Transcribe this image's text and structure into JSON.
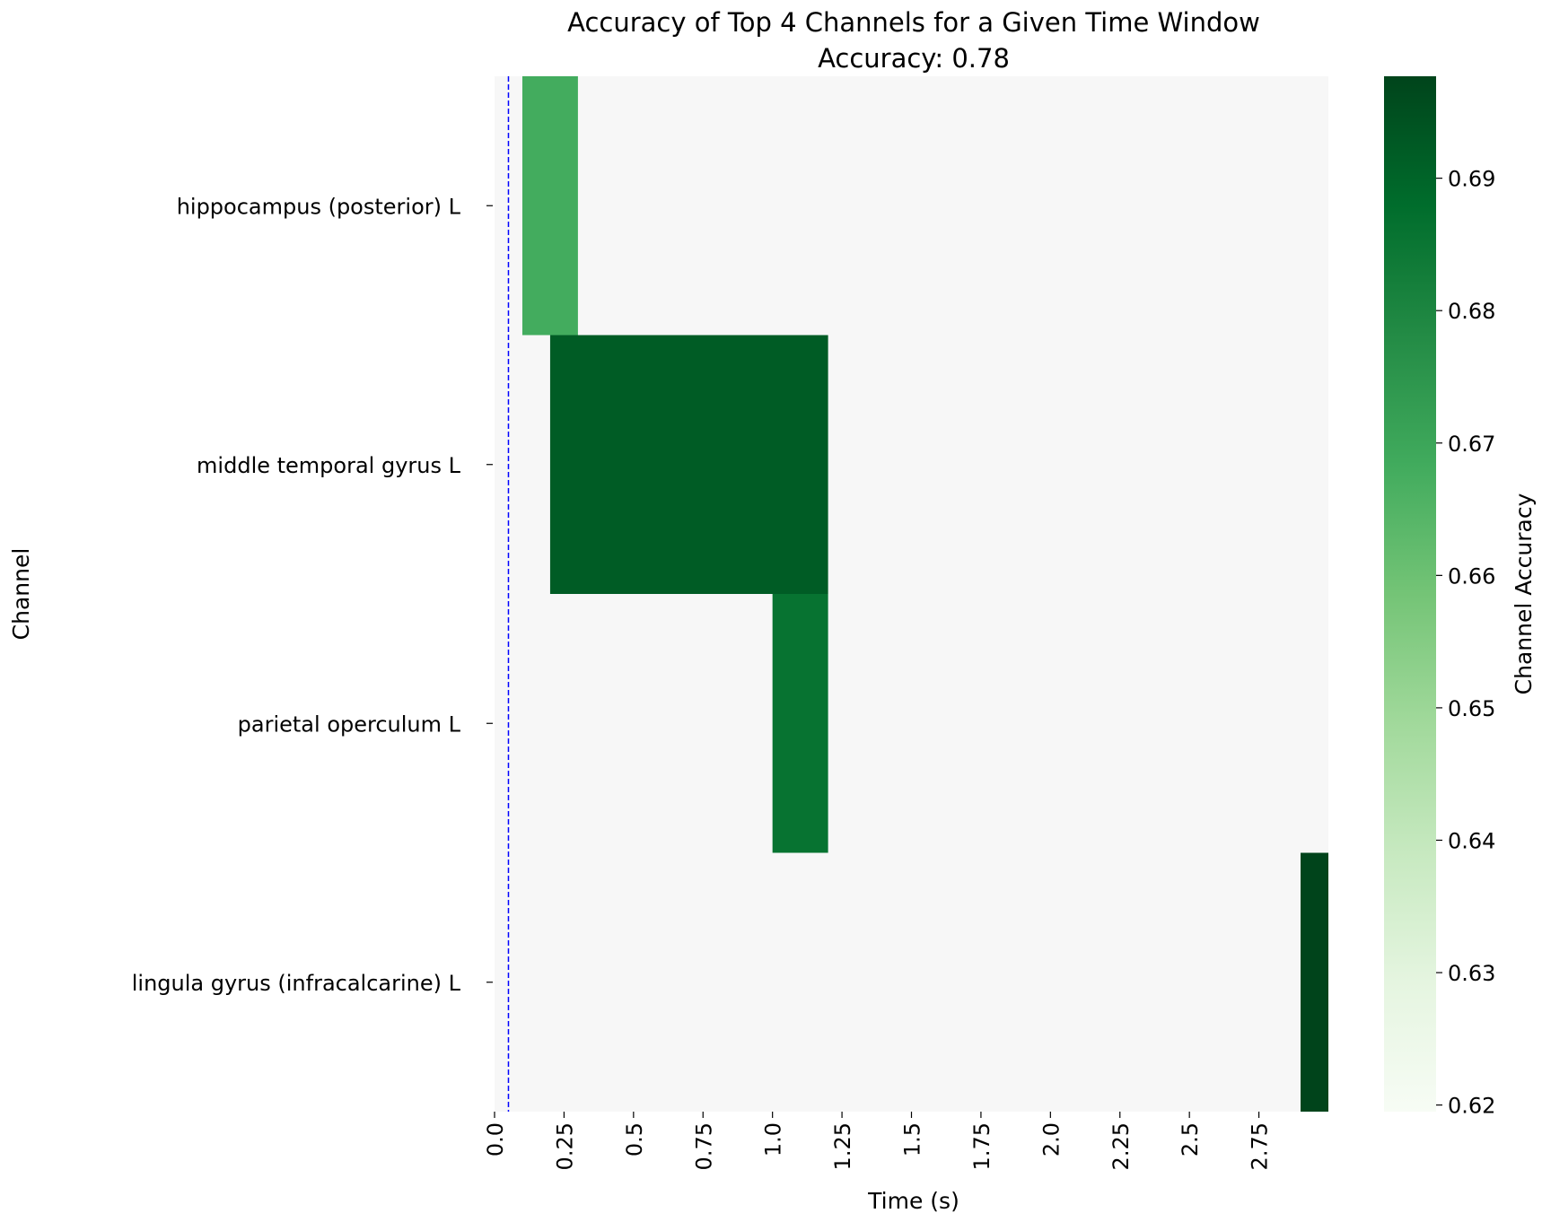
{
  "chart_data": {
    "type": "heatmap",
    "title": "Accuracy of Top 4 Channels for a Given Time Window",
    "subtitle": "Accuracy: 0.78",
    "xlabel": "Time (s)",
    "ylabel": "Channel",
    "colorbar_label": "Channel Accuracy",
    "xlim": [
      0,
      3.0
    ],
    "x_ticks": [
      "0.0",
      "0.25",
      "0.5",
      "0.75",
      "1.0",
      "1.25",
      "1.5",
      "1.75",
      "2.0",
      "2.25",
      "2.5",
      "2.75"
    ],
    "x_tick_values": [
      0,
      0.25,
      0.5,
      0.75,
      1.0,
      1.25,
      1.5,
      1.75,
      2.0,
      2.25,
      2.5,
      2.75
    ],
    "channels": [
      "hippocampus (posterior) L",
      "middle temporal gyrus L",
      "parietal operculum L",
      "lingula gyrus (infracalcarine) L"
    ],
    "cells": [
      {
        "channel": "hippocampus (posterior) L",
        "x0": 0.1,
        "x1": 0.3,
        "value": 0.668
      },
      {
        "channel": "middle temporal gyrus L",
        "x0": 0.2,
        "x1": 1.2,
        "value": 0.692
      },
      {
        "channel": "parietal operculum L",
        "x0": 1.0,
        "x1": 1.2,
        "value": 0.686
      },
      {
        "channel": "lingula gyrus (infracalcarine) L",
        "x0": 2.9,
        "x1": 3.0,
        "value": 0.698
      }
    ],
    "background_color": "#f7f7f7",
    "reference_line": {
      "x": 0.05,
      "color": "#0000ff",
      "style": "dashed"
    },
    "colorbar": {
      "range": [
        0.6195,
        0.6977
      ],
      "ticks": [
        "0.62",
        "0.63",
        "0.64",
        "0.65",
        "0.66",
        "0.67",
        "0.68",
        "0.69"
      ],
      "tick_values": [
        0.62,
        0.63,
        0.64,
        0.65,
        0.66,
        0.67,
        0.68,
        0.69
      ],
      "colormap": "Greens",
      "colors": [
        "#f7fcf5",
        "#e5f5e0",
        "#c7e9c0",
        "#a1d99b",
        "#74c476",
        "#41ab5d",
        "#238b45",
        "#006d2c",
        "#00441b"
      ]
    }
  }
}
